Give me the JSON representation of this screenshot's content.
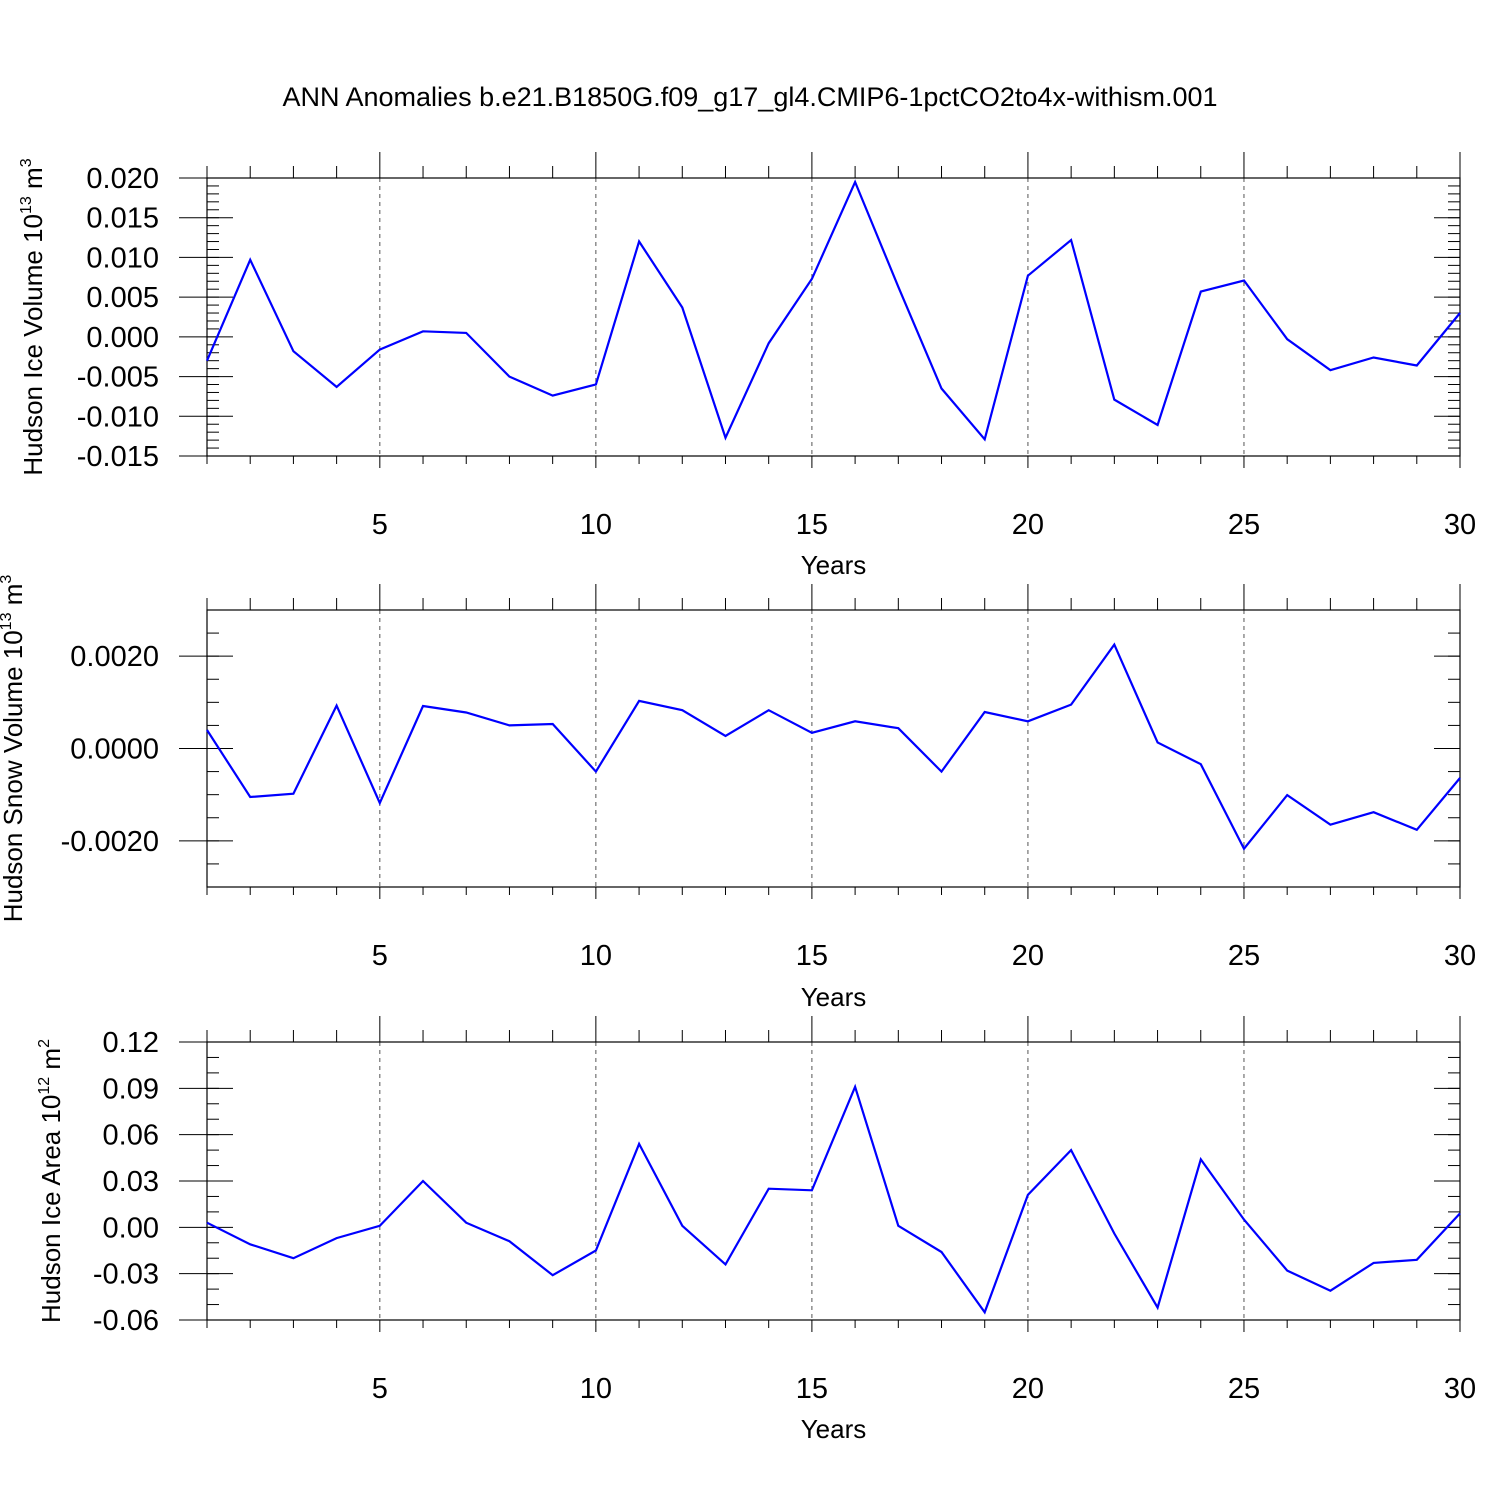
{
  "title": "ANN Anomalies b.e21.B1850G.f09_g17_gl4.CMIP6-1pctCO2to4x-withism.001",
  "colors": {
    "series": "#0000ff",
    "axes": "#000000",
    "grid": "#555555"
  },
  "chart_data": [
    {
      "type": "line",
      "name": "ice-volume",
      "title": "",
      "xlabel": "Years",
      "ylabel": {
        "main": "Hudson Ice Volume 10",
        "exp": "13",
        "unit": " m",
        "unit_exp": "3"
      },
      "xlim": [
        1,
        30
      ],
      "ylim": [
        -0.015,
        0.02
      ],
      "xticks": [
        5,
        10,
        15,
        20,
        25,
        30
      ],
      "xtick_labels": [
        "5",
        "10",
        "15",
        "20",
        "25",
        "30"
      ],
      "yticks": [
        -0.015,
        -0.01,
        -0.005,
        0.0,
        0.005,
        0.01,
        0.015,
        0.02
      ],
      "ytick_labels": [
        "-0.015",
        "-0.010",
        "-0.005",
        "0.000",
        "0.005",
        "0.010",
        "0.015",
        "0.020"
      ],
      "grid": "vertical dashed",
      "x": [
        1,
        2,
        3,
        4,
        5,
        6,
        7,
        8,
        9,
        10,
        11,
        12,
        13,
        14,
        15,
        16,
        17,
        18,
        19,
        20,
        21,
        22,
        23,
        24,
        25,
        26,
        27,
        28,
        29,
        30
      ],
      "values": [
        -0.003,
        0.0097,
        -0.0018,
        -0.0063,
        -0.0016,
        0.0007,
        0.0005,
        -0.005,
        -0.0074,
        -0.006,
        0.012,
        0.0037,
        -0.0127,
        -0.0008,
        0.0073,
        0.0195,
        0.0063,
        -0.0065,
        -0.0129,
        0.0077,
        0.0122,
        -0.0079,
        -0.0111,
        0.0057,
        0.0071,
        -0.0003,
        -0.0042,
        -0.0026,
        -0.0036,
        0.003
      ]
    },
    {
      "type": "line",
      "name": "snow-volume",
      "title": "",
      "xlabel": "Years",
      "ylabel": {
        "main": "Hudson Snow Volume 10",
        "exp": "13",
        "unit": " m",
        "unit_exp": "3"
      },
      "xlim": [
        1,
        30
      ],
      "ylim": [
        -0.003,
        0.003
      ],
      "xticks": [
        5,
        10,
        15,
        20,
        25,
        30
      ],
      "xtick_labels": [
        "5",
        "10",
        "15",
        "20",
        "25",
        "30"
      ],
      "yticks": [
        -0.002,
        0.0,
        0.002
      ],
      "ytick_labels": [
        "-0.0020",
        "0.0000",
        "0.0020"
      ],
      "grid": "vertical dashed",
      "x": [
        1,
        2,
        3,
        4,
        5,
        6,
        7,
        8,
        9,
        10,
        11,
        12,
        13,
        14,
        15,
        16,
        17,
        18,
        19,
        20,
        21,
        22,
        23,
        24,
        25,
        26,
        27,
        28,
        29,
        30
      ],
      "values": [
        0.0004,
        -0.00105,
        -0.00098,
        0.00093,
        -0.00118,
        0.00092,
        0.00078,
        0.0005,
        0.00053,
        -0.0005,
        0.00103,
        0.00083,
        0.00027,
        0.00083,
        0.00034,
        0.00059,
        0.00044,
        -0.0005,
        0.00079,
        0.00059,
        0.00095,
        0.00225,
        0.00013,
        -0.00034,
        -0.00217,
        -0.00101,
        -0.00165,
        -0.00138,
        -0.00176,
        -0.00064
      ]
    },
    {
      "type": "line",
      "name": "ice-area",
      "title": "",
      "xlabel": "Years",
      "ylabel": {
        "main": "Hudson Ice Area 10",
        "exp": "12",
        "unit": " m",
        "unit_exp": "2"
      },
      "xlim": [
        1,
        30
      ],
      "ylim": [
        -0.06,
        0.12
      ],
      "xticks": [
        5,
        10,
        15,
        20,
        25,
        30
      ],
      "xtick_labels": [
        "5",
        "10",
        "15",
        "20",
        "25",
        "30"
      ],
      "yticks": [
        -0.06,
        -0.03,
        0.0,
        0.03,
        0.06,
        0.09,
        0.12
      ],
      "ytick_labels": [
        "-0.06",
        "-0.03",
        "0.00",
        "0.03",
        "0.06",
        "0.09",
        "0.12"
      ],
      "grid": "vertical dashed",
      "x": [
        1,
        2,
        3,
        4,
        5,
        6,
        7,
        8,
        9,
        10,
        11,
        12,
        13,
        14,
        15,
        16,
        17,
        18,
        19,
        20,
        21,
        22,
        23,
        24,
        25,
        26,
        27,
        28,
        29,
        30
      ],
      "values": [
        0.003,
        -0.011,
        -0.02,
        -0.007,
        0.001,
        0.03,
        0.003,
        -0.009,
        -0.031,
        -0.015,
        0.054,
        0.001,
        -0.024,
        0.025,
        0.024,
        0.091,
        0.001,
        -0.016,
        -0.055,
        0.021,
        0.05,
        -0.004,
        -0.052,
        0.044,
        0.005,
        -0.028,
        -0.041,
        -0.023,
        -0.021,
        0.009
      ]
    }
  ]
}
